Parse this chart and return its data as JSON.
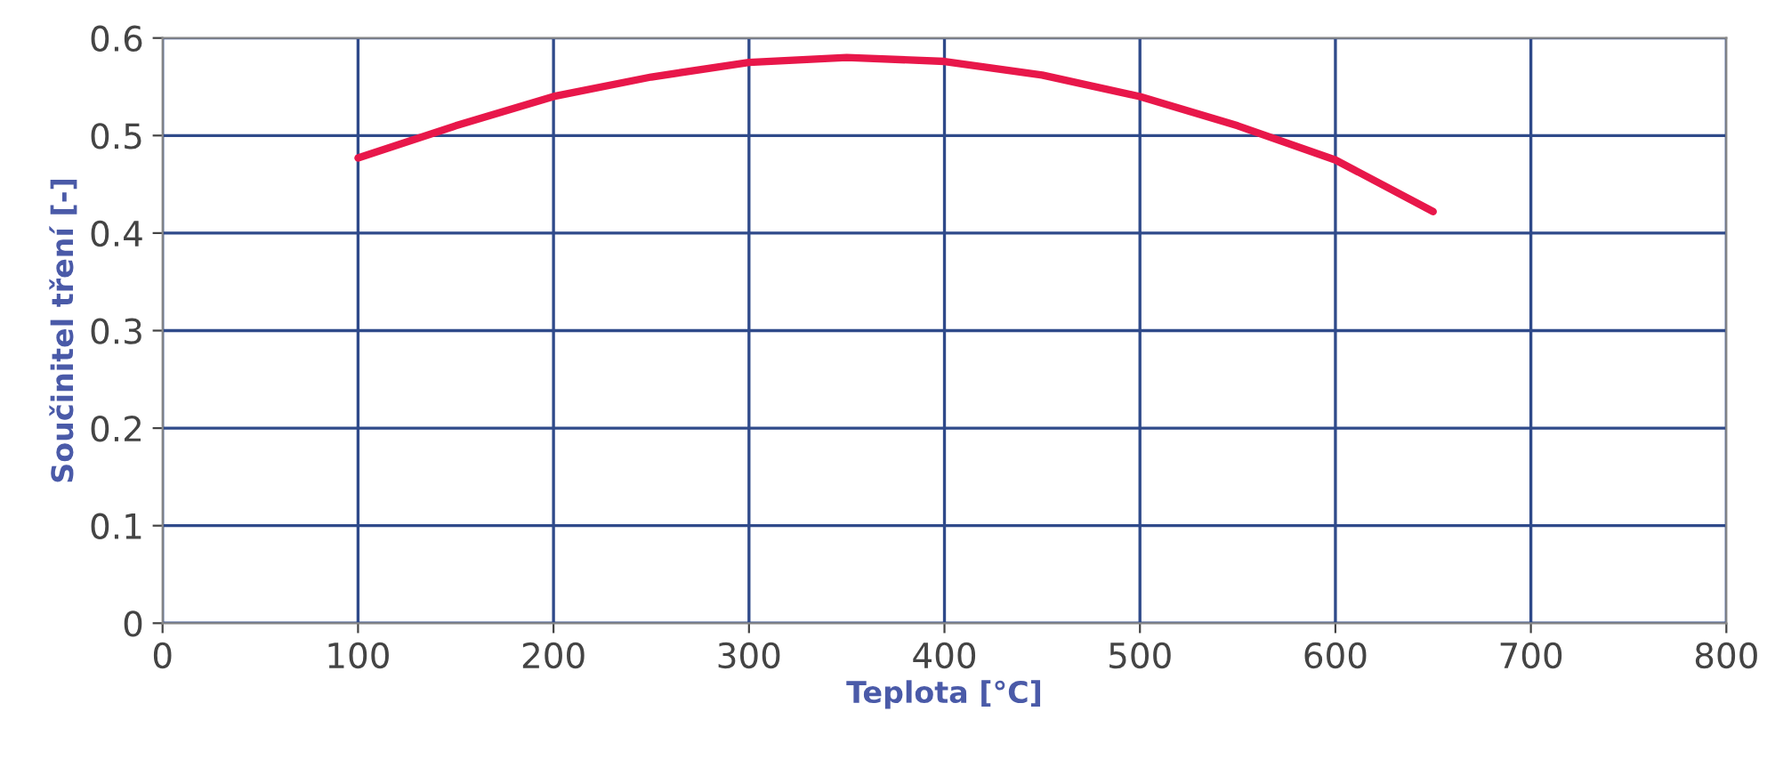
{
  "chart_data": {
    "type": "line",
    "xlabel": "Teplota [°C]",
    "ylabel": "Součinitel tření [-]",
    "series": [
      {
        "color": "#e8174a",
        "x": [
          100,
          150,
          200,
          250,
          300,
          350,
          400,
          450,
          500,
          550,
          600,
          650
        ],
        "values": [
          0.477,
          0.51,
          0.54,
          0.56,
          0.575,
          0.58,
          0.576,
          0.562,
          0.54,
          0.51,
          0.475,
          0.422
        ]
      }
    ],
    "xlim": [
      0,
      800
    ],
    "ylim": [
      0,
      0.6
    ],
    "xticks": [
      0,
      100,
      200,
      300,
      400,
      500,
      600,
      700,
      800
    ],
    "yticks": [
      {
        "value": 0,
        "label": "0"
      },
      0.1,
      0.2,
      0.3,
      0.4,
      0.5,
      0.6
    ],
    "grid": true,
    "marker": "none",
    "line_style": "solid"
  }
}
